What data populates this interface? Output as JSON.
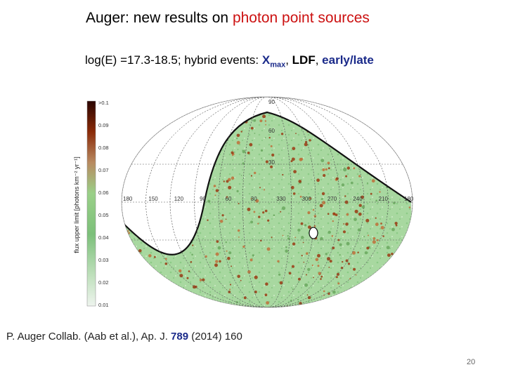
{
  "title": {
    "prefix": "Auger:  new results on ",
    "highlight": "photon point sources",
    "highlight_color": "#cc1111"
  },
  "subtitle": {
    "prefix": "log(E) =17.3-18.5;   hybrid events:  ",
    "xmax_main": "X",
    "xmax_sub": "max",
    "sep1": ", ",
    "ldf": "LDF",
    "sep2": ", ",
    "early_late": "early/late",
    "accent_color": "#1a2a8a"
  },
  "figure": {
    "colorbar_label": "flux upper limit [photons km⁻² yr⁻¹]",
    "colorbar_ticks": [
      ">0.1",
      "0.09",
      "0.08",
      "0.07",
      "0.06",
      "0.05",
      "0.04",
      "0.03",
      "0.02",
      "0.01"
    ],
    "longitude_labels": [
      "180",
      "150",
      "120",
      "90",
      "60",
      "30",
      "330",
      "300",
      "270",
      "240",
      "210",
      "180"
    ],
    "latitude_labels": [
      "90",
      "60",
      "30"
    ],
    "colors": {
      "map_green": "#a8d8a0",
      "hotspot": "#a04018",
      "colorbar_top": "#3a0a00",
      "colorbar_bottom": "#e8f0e8"
    }
  },
  "citation": {
    "prefix": "P. Auger Collab. (Aab et al.), Ap. J. ",
    "volume": "789",
    "suffix": " (2014) 160"
  },
  "page_number": "20"
}
